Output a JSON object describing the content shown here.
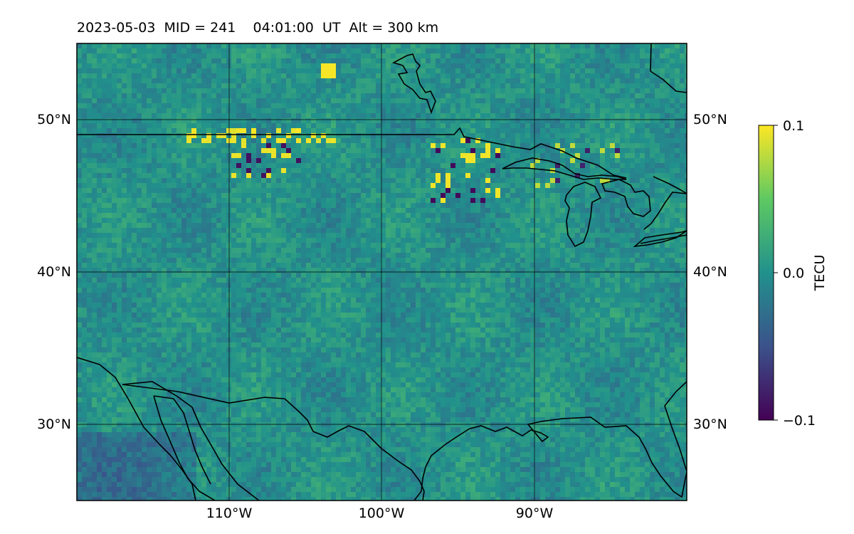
{
  "title": "2023-05-03  MID = 241    04:01:00  UT  Alt = 300 km",
  "map": {
    "lat_labels": [
      "50°N",
      "40°N",
      "30°N"
    ],
    "lon_labels": [
      "110°W",
      "100°W",
      "90°W"
    ],
    "lat_range": [
      25,
      55
    ],
    "lon_range": [
      -120,
      -80
    ],
    "field_name": "TEC perturbation",
    "strong_positive_features": [
      "band near 49°N, 111–104°W",
      "cluster near 46–48°N, 96–92°W",
      "spot near 53.5°N, 104°W"
    ],
    "strong_negative_features": [
      "cluster near 45.5–47°N, 96–93°W"
    ]
  },
  "colorbar": {
    "title": "TECU",
    "ticks": [
      "0.1",
      "0.0",
      "−0.1"
    ],
    "range": [
      -0.1,
      0.1
    ],
    "colormap": "viridis",
    "colors": [
      "#440154",
      "#3b528b",
      "#21918c",
      "#5ec962",
      "#fde725"
    ]
  }
}
